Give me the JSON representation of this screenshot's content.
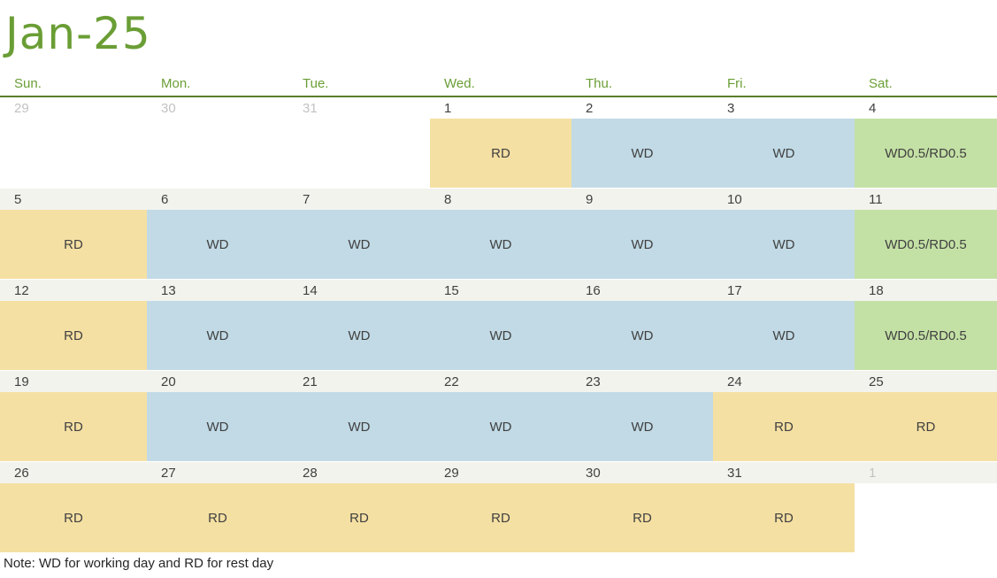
{
  "title": "Jan-25",
  "days_of_week": [
    "Sun.",
    "Mon.",
    "Tue.",
    "Wed.",
    "Thu.",
    "Fri.",
    "Sat."
  ],
  "weeks": [
    {
      "days": [
        {
          "num": "29",
          "muted": true,
          "status": ""
        },
        {
          "num": "30",
          "muted": true,
          "status": ""
        },
        {
          "num": "31",
          "muted": true,
          "status": ""
        },
        {
          "num": "1",
          "muted": false,
          "status": "RD"
        },
        {
          "num": "2",
          "muted": false,
          "status": "WD"
        },
        {
          "num": "3",
          "muted": false,
          "status": "WD"
        },
        {
          "num": "4",
          "muted": false,
          "status": "WD0.5/RD0.5"
        }
      ]
    },
    {
      "days": [
        {
          "num": "5",
          "muted": false,
          "status": "RD"
        },
        {
          "num": "6",
          "muted": false,
          "status": "WD"
        },
        {
          "num": "7",
          "muted": false,
          "status": "WD"
        },
        {
          "num": "8",
          "muted": false,
          "status": "WD"
        },
        {
          "num": "9",
          "muted": false,
          "status": "WD"
        },
        {
          "num": "10",
          "muted": false,
          "status": "WD"
        },
        {
          "num": "11",
          "muted": false,
          "status": "WD0.5/RD0.5"
        }
      ]
    },
    {
      "days": [
        {
          "num": "12",
          "muted": false,
          "status": "RD"
        },
        {
          "num": "13",
          "muted": false,
          "status": "WD"
        },
        {
          "num": "14",
          "muted": false,
          "status": "WD"
        },
        {
          "num": "15",
          "muted": false,
          "status": "WD"
        },
        {
          "num": "16",
          "muted": false,
          "status": "WD"
        },
        {
          "num": "17",
          "muted": false,
          "status": "WD"
        },
        {
          "num": "18",
          "muted": false,
          "status": "WD0.5/RD0.5"
        }
      ]
    },
    {
      "days": [
        {
          "num": "19",
          "muted": false,
          "status": "RD"
        },
        {
          "num": "20",
          "muted": false,
          "status": "WD"
        },
        {
          "num": "21",
          "muted": false,
          "status": "WD"
        },
        {
          "num": "22",
          "muted": false,
          "status": "WD"
        },
        {
          "num": "23",
          "muted": false,
          "status": "WD"
        },
        {
          "num": "24",
          "muted": false,
          "status": "RD"
        },
        {
          "num": "25",
          "muted": false,
          "status": "RD"
        }
      ]
    },
    {
      "days": [
        {
          "num": "26",
          "muted": false,
          "status": "RD"
        },
        {
          "num": "27",
          "muted": false,
          "status": "RD"
        },
        {
          "num": "28",
          "muted": false,
          "status": "RD"
        },
        {
          "num": "29",
          "muted": false,
          "status": "RD"
        },
        {
          "num": "30",
          "muted": false,
          "status": "RD"
        },
        {
          "num": "31",
          "muted": false,
          "status": "RD"
        },
        {
          "num": "1",
          "muted": true,
          "status": ""
        }
      ]
    }
  ],
  "note": "Note: WD for working day and RD for rest day",
  "colors": {
    "title": "#6a9e35",
    "rest_day": "#f5e0a3",
    "working_day": "#c1dae6",
    "half_day": "#c4e1a5",
    "header_rule": "#5c7f2a"
  }
}
